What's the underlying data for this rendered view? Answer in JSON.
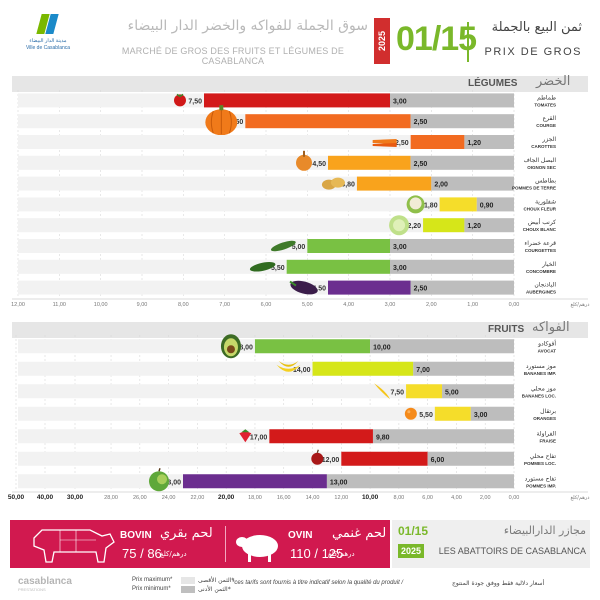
{
  "header": {
    "logo_text_ar": "مدينة الدار البيضاء",
    "logo_text_fr": "Ville de Casablanca",
    "market_ar": "سوق الجملة للفواكه والخضر الدار البيضاء",
    "market_fr": "MARCHÉ DE GROS DES FRUITS ET LÉGUMES DE CASABLANCA",
    "year": "2025",
    "date": "01/15",
    "title_ar": "ثمن البيع بالجملة",
    "title_fr": "PRIX DE GROS"
  },
  "sections": {
    "legumes_fr": "LÉGUMES",
    "legumes_ar": "الخضر",
    "fruits_fr": "FRUITS",
    "fruits_ar": "الفواكه"
  },
  "unit_label": "درهم/كلغ",
  "colors": {
    "max_bar": "#e6e6e6",
    "min_bar": "#f2f2f2",
    "value_bg": "#999999",
    "red": "#d31a1a",
    "orange": "#f26b21",
    "amber": "#f9a31c",
    "yellow": "#f5dd2a",
    "lime": "#d6e619",
    "green": "#79c143",
    "purple": "#6b2e8f",
    "banner_red": "#d1194f",
    "accent_green": "#7ab82a"
  },
  "chart_data": [
    {
      "type": "bar",
      "title": "LÉGUMES",
      "orientation": "horizontal",
      "xlim": [
        0,
        12
      ],
      "x_ticks": [
        "12,00",
        "11,00",
        "10,00",
        "9,00",
        "8,00",
        "7,00",
        "6,00",
        "5,00",
        "4,00",
        "3,00",
        "2,00",
        "1,00",
        "0,00"
      ],
      "items": [
        {
          "ar": "طماطم",
          "fr": "TOMATES",
          "max": 7.5,
          "min": 3.0,
          "max_label": "7,50",
          "min_label": "3,00",
          "color": "red",
          "icon": "tomato-icon"
        },
        {
          "ar": "القرع",
          "fr": "COURGE",
          "max": 6.5,
          "min": 2.5,
          "max_label": "6,50",
          "min_label": "2,50",
          "color": "orange",
          "icon": "pumpkin-icon"
        },
        {
          "ar": "الجزر",
          "fr": "CAROTTES",
          "max": 2.5,
          "min": 1.2,
          "max_label": "2,50",
          "min_label": "1,20",
          "color": "orange",
          "icon": "carrot-icon"
        },
        {
          "ar": "البصل الجاف",
          "fr": "OIGNON SEC",
          "max": 4.5,
          "min": 2.5,
          "max_label": "4,50",
          "min_label": "2,50",
          "color": "amber",
          "icon": "onion-icon"
        },
        {
          "ar": "بطاطس",
          "fr": "POMMES DE TERRE",
          "max": 3.8,
          "min": 2.0,
          "max_label": "3,80",
          "min_label": "2,00",
          "color": "amber",
          "icon": "potato-icon"
        },
        {
          "ar": "شفلورية",
          "fr": "CHOUX FLEUR",
          "max": 1.8,
          "min": 0.9,
          "max_label": "1,80",
          "min_label": "0,90",
          "color": "yellow",
          "icon": "cauliflower-icon"
        },
        {
          "ar": "كرنب أبيض",
          "fr": "CHOUX BLANC",
          "max": 2.2,
          "min": 1.2,
          "max_label": "2,20",
          "min_label": "1,20",
          "color": "lime",
          "icon": "cabbage-icon"
        },
        {
          "ar": "قرعة خضراء",
          "fr": "COURGETTES",
          "max": 5.0,
          "min": 3.0,
          "max_label": "5,00",
          "min_label": "3,00",
          "color": "green",
          "icon": "zucchini-icon"
        },
        {
          "ar": "الخيار",
          "fr": "CONCOMBRE",
          "max": 5.5,
          "min": 3.0,
          "max_label": "5,50",
          "min_label": "3,00",
          "color": "green",
          "icon": "cucumber-icon"
        },
        {
          "ar": "الباذنجان",
          "fr": "AUBERGINES",
          "max": 4.5,
          "min": 2.5,
          "max_label": "4,50",
          "min_label": "2,50",
          "color": "purple",
          "icon": "eggplant-icon"
        }
      ]
    },
    {
      "type": "bar",
      "title": "FRUITS",
      "orientation": "horizontal",
      "xlim": [
        0,
        50
      ],
      "x_ticks": [
        "50,00",
        "40,00",
        "30,00",
        "28,00",
        "26,00",
        "24,00",
        "22,00",
        "20,00",
        "18,00",
        "16,00",
        "14,00",
        "12,00",
        "10,00",
        "8,00",
        "6,00",
        "4,00",
        "2,00",
        "0,00"
      ],
      "items": [
        {
          "ar": "أفوكادو",
          "fr": "AVOCAT",
          "max": 18.0,
          "min": 10.0,
          "max_label": "18,00",
          "min_label": "10,00",
          "color": "green",
          "icon": "avocado-icon"
        },
        {
          "ar": "موز مستورد",
          "fr": "BANANES IMP.",
          "max": 14.0,
          "min": 7.0,
          "max_label": "14,00",
          "min_label": "7,00",
          "color": "lime",
          "icon": "banana-imp-icon"
        },
        {
          "ar": "موز محلي",
          "fr": "BANANES LOC.",
          "max": 7.5,
          "min": 5.0,
          "max_label": "7,50",
          "min_label": "5,00",
          "color": "yellow",
          "icon": "banana-loc-icon"
        },
        {
          "ar": "برتقال",
          "fr": "ORANGES",
          "max": 5.5,
          "min": 3.0,
          "max_label": "5,50",
          "min_label": "3,00",
          "color": "yellow",
          "icon": "orange-icon"
        },
        {
          "ar": "الفراولة",
          "fr": "FRAISE",
          "max": 17.0,
          "min": 9.8,
          "max_label": "17,00",
          "min_label": "9,80",
          "color": "red",
          "icon": "strawberry-icon"
        },
        {
          "ar": "تفاح محلي",
          "fr": "POMMES LOC.",
          "max": 12.0,
          "min": 6.0,
          "max_label": "12,00",
          "min_label": "6,00",
          "color": "red",
          "icon": "apple-loc-icon"
        },
        {
          "ar": "تفاح مستورد",
          "fr": "POMMES IMP.",
          "max": 23.0,
          "min": 13.0,
          "max_label": "23,00",
          "min_label": "13,00",
          "color": "purple",
          "icon": "apple-imp-icon"
        }
      ]
    }
  ],
  "banner": {
    "bovin_fr": "BOVIN",
    "bovin_ar": "لحم بقري",
    "bovin_price": "75",
    "bovin_price2": "86",
    "bovin_unit": "درهم/كلغ",
    "ovin_fr": "OVIN",
    "ovin_ar": "لحم غنمي",
    "ovin_price": "110",
    "ovin_price2": "125",
    "ovin_unit": "درهم/كلغ",
    "abattoirs_date": "01/15",
    "abattoirs_year": "2025",
    "abattoirs_ar": "مجازر الدارالبيضاء",
    "abattoirs_fr": "LES ABATTOIRS DE CASABLANCA"
  },
  "footer": {
    "logo_text": "casablanca",
    "logo_sub": "PRESTATIONS",
    "prix_max": "Prix maximum*",
    "prix_min": "Prix minimum*",
    "prix_max_ar": "الثمن الأقصى*",
    "prix_min_ar": "الثمن الأدنى*",
    "note_fr": "*ces tarifs sont fournis à titre indicatif selon la qualité du produit /",
    "note_ar": "أسعار دلالية فقط ووفق جودة المنتوج"
  }
}
